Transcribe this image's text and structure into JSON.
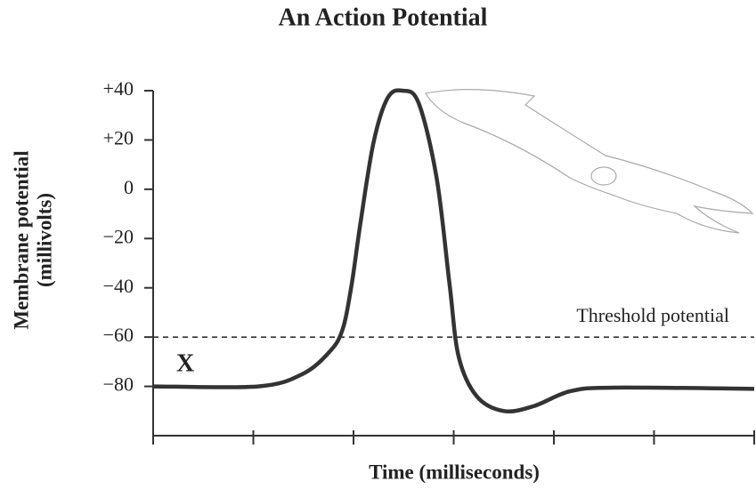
{
  "chart_data": {
    "type": "line",
    "title": "An Action Potential",
    "ylabel": [
      "Membrane potential",
      "(millivolts)"
    ],
    "xlabel": "Time (milliseconds)",
    "x": [
      0,
      1.05,
      1.49,
      1.76,
      1.89,
      1.98,
      2.07,
      2.2,
      2.34,
      2.49,
      2.65,
      2.83,
      2.96,
      3.05,
      3.23,
      3.5,
      3.8,
      4.16,
      4.6,
      6
    ],
    "series": [
      {
        "name": "Membrane potential",
        "color": "#333333",
        "values": [
          -80,
          -80,
          -75,
          -66,
          -57,
          -39,
          -13.5,
          19,
          37,
          40,
          35,
          4.5,
          -39,
          -68,
          -84,
          -90,
          -88,
          -82,
          -80.5,
          -81
        ]
      }
    ],
    "threshold": -60,
    "threshold_label": "Threshold potential",
    "marker_label": "X",
    "xlim": [
      0,
      6
    ],
    "xticks": [
      0,
      1,
      2,
      3,
      4,
      5,
      6
    ],
    "ylim": [
      -100,
      40
    ],
    "yticks": [
      {
        "value": 40,
        "label": "+40"
      },
      {
        "value": 20,
        "label": "+20"
      },
      0,
      {
        "value": -20,
        "label": "−20"
      },
      {
        "value": -40,
        "label": "−40"
      },
      {
        "value": -60,
        "label": "−60"
      },
      {
        "value": -80,
        "label": "−80"
      }
    ]
  }
}
